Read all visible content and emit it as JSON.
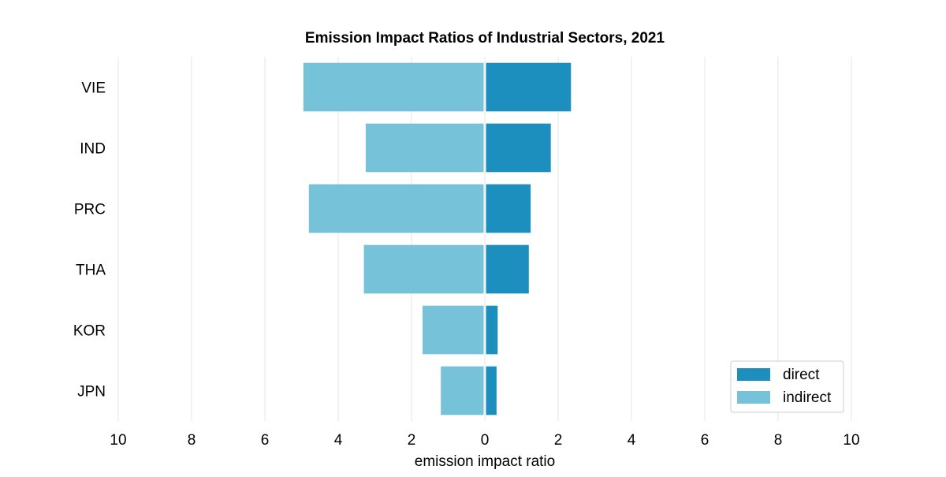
{
  "chart_data": {
    "type": "bar",
    "orientation": "horizontal-diverging",
    "title": "Emission Impact Ratios of Industrial Sectors, 2021",
    "xlabel": "emission impact ratio",
    "ylabel": "",
    "xlim": [
      -10,
      10
    ],
    "x_ticks": [
      -10,
      -8,
      -6,
      -4,
      -2,
      0,
      2,
      4,
      6,
      8,
      10
    ],
    "x_tick_labels": [
      "10",
      "8",
      "6",
      "4",
      "2",
      "0",
      "2",
      "4",
      "6",
      "8",
      "10"
    ],
    "categories": [
      "VIE",
      "IND",
      "PRC",
      "THA",
      "KOR",
      "JPN"
    ],
    "series": [
      {
        "name": "direct",
        "color": "#1c8fbf",
        "side": "right",
        "values": [
          2.35,
          1.8,
          1.25,
          1.2,
          0.35,
          0.32
        ]
      },
      {
        "name": "indirect",
        "color": "#76c2d9",
        "side": "left",
        "values": [
          4.95,
          3.25,
          4.8,
          3.3,
          1.7,
          1.2
        ]
      }
    ],
    "grid": "vertical",
    "legend_position": "bottom-right"
  }
}
